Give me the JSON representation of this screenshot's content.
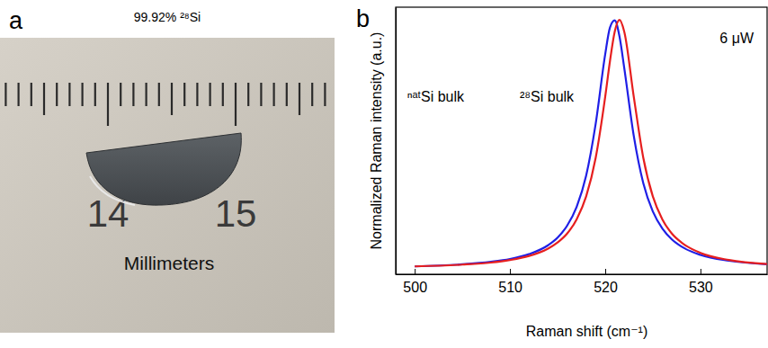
{
  "photo": {
    "panel_label": "a",
    "title": "99.92% ²⁸Si",
    "ruler_labels": [
      "14",
      "15"
    ],
    "caption": "Millimeters"
  },
  "chart_data": {
    "type": "line",
    "panel_label": "b",
    "x_label": "Raman shift (cm⁻¹)",
    "y_label": "Normalized Raman intensity (a.u.)",
    "annotations": [
      "6 μW"
    ],
    "x": [
      500,
      505,
      508,
      510,
      512,
      514,
      515,
      516,
      517,
      518,
      519,
      520,
      520.5,
      521,
      521.5,
      522,
      523,
      524,
      525,
      526,
      527,
      528,
      530,
      533,
      537
    ],
    "series": [
      {
        "name": "ⁿᵃᵗSi bulk",
        "color": "#1f1fe6",
        "values": [
          0.031,
          0.039,
          0.049,
          0.06,
          0.079,
          0.114,
          0.144,
          0.191,
          0.265,
          0.388,
          0.592,
          0.865,
          0.97,
          0.998,
          0.935,
          0.811,
          0.544,
          0.358,
          0.247,
          0.18,
          0.137,
          0.109,
          0.076,
          0.053,
          0.039
        ]
      },
      {
        "name": "²⁸Si bulk",
        "color": "#e61f1f",
        "values": [
          0.031,
          0.038,
          0.046,
          0.056,
          0.072,
          0.101,
          0.125,
          0.16,
          0.216,
          0.306,
          0.458,
          0.698,
          0.838,
          0.954,
          1.0,
          0.954,
          0.698,
          0.458,
          0.306,
          0.216,
          0.16,
          0.125,
          0.084,
          0.056,
          0.04
        ]
      }
    ],
    "xlim": [
      498,
      537
    ],
    "xticks": [
      500,
      510,
      520,
      530
    ],
    "ylim": [
      0,
      1.05
    ],
    "yticks": [],
    "tick_labels": "x",
    "grid": false
  }
}
